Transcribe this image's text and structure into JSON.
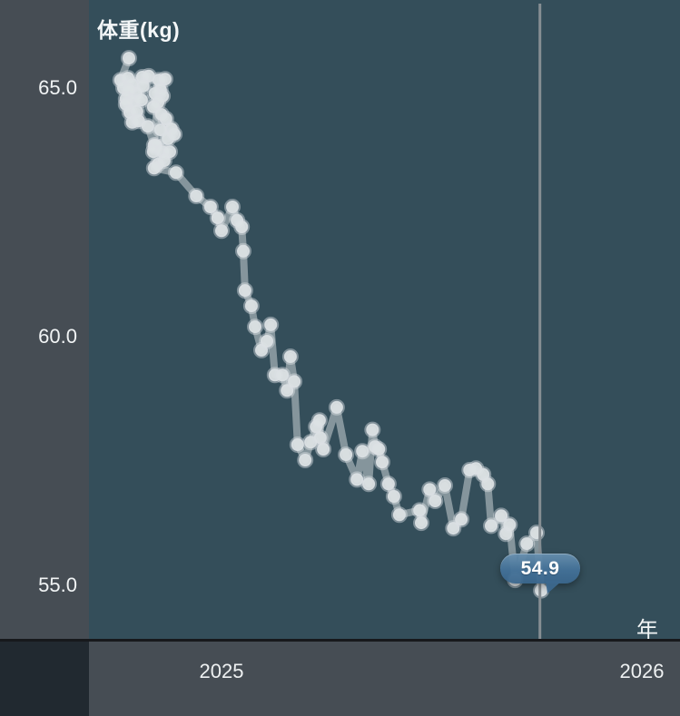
{
  "title": "体重(kg)",
  "axis": {
    "y_tick_labels": [
      "65.0",
      "60.0",
      "55.0"
    ],
    "x_tick_labels": [
      "2025",
      "2026"
    ],
    "x_unit_label": "年"
  },
  "callout": {
    "value": "54.9"
  },
  "colors": {
    "chart_background": "#344e5a",
    "panel": "#464d54",
    "panel_dark": "#212930",
    "axis_line": "#17191c",
    "series_line": "#c9d0d4",
    "series_dot": "#dce1e4",
    "cursor_line": "#868e93",
    "callout_fill": "#4a79a3",
    "text": "#f2f5f6"
  },
  "chart_data": {
    "type": "line",
    "title": "体重(kg)",
    "xlabel": "年",
    "ylabel": "体重(kg)",
    "x_tick_values": [
      2025,
      2026
    ],
    "y_tick_values": [
      65.0,
      60.0,
      55.0
    ],
    "xlim": [
      2024.685,
      2026.09
    ],
    "ylim": [
      53.89,
      66.77
    ],
    "grid": false,
    "legend": "none",
    "cursor_x": 2025.757,
    "selected_point_label": "54.9",
    "series": [
      {
        "name": "体重(kg)",
        "points": [
          [
            2024.78,
            65.6
          ],
          [
            2024.76,
            65.16
          ],
          [
            2024.778,
            65.2
          ],
          [
            2024.767,
            65.0
          ],
          [
            2024.788,
            65.07
          ],
          [
            2024.812,
            65.22
          ],
          [
            2024.827,
            65.24
          ],
          [
            2024.814,
            65.04
          ],
          [
            2024.797,
            64.89
          ],
          [
            2024.78,
            64.95
          ],
          [
            2024.773,
            64.78
          ],
          [
            2024.79,
            64.73
          ],
          [
            2024.81,
            64.76
          ],
          [
            2024.773,
            64.67
          ],
          [
            2024.782,
            64.51
          ],
          [
            2024.799,
            64.53
          ],
          [
            2024.788,
            64.31
          ],
          [
            2024.803,
            64.34
          ],
          [
            2024.825,
            64.23
          ],
          [
            2024.84,
            63.85
          ],
          [
            2024.851,
            65.16
          ],
          [
            2024.866,
            65.18
          ],
          [
            2024.855,
            64.96
          ],
          [
            2024.842,
            64.89
          ],
          [
            2024.86,
            64.84
          ],
          [
            2024.849,
            64.71
          ],
          [
            2024.838,
            64.62
          ],
          [
            2024.857,
            64.47
          ],
          [
            2024.868,
            64.38
          ],
          [
            2024.881,
            64.18
          ],
          [
            2024.855,
            64.16
          ],
          [
            2024.873,
            63.98
          ],
          [
            2024.888,
            64.07
          ],
          [
            2024.844,
            63.85
          ],
          [
            2024.838,
            63.72
          ],
          [
            2024.86,
            63.72
          ],
          [
            2024.877,
            63.72
          ],
          [
            2024.864,
            63.54
          ],
          [
            2024.849,
            63.47
          ],
          [
            2024.84,
            63.39
          ],
          [
            2024.892,
            63.3
          ],
          [
            2024.94,
            62.83
          ],
          [
            2024.974,
            62.61
          ],
          [
            2024.991,
            62.39
          ],
          [
            2025.0,
            62.13
          ],
          [
            2025.026,
            62.61
          ],
          [
            2025.037,
            62.34
          ],
          [
            2025.048,
            62.21
          ],
          [
            2025.052,
            61.72
          ],
          [
            2025.056,
            60.93
          ],
          [
            2025.071,
            60.62
          ],
          [
            2025.08,
            60.2
          ],
          [
            2025.095,
            59.73
          ],
          [
            2025.108,
            59.91
          ],
          [
            2025.117,
            60.24
          ],
          [
            2025.127,
            59.23
          ],
          [
            2025.145,
            59.23
          ],
          [
            2025.156,
            58.92
          ],
          [
            2025.164,
            59.6
          ],
          [
            2025.173,
            59.1
          ],
          [
            2025.181,
            57.83
          ],
          [
            2025.199,
            57.52
          ],
          [
            2025.212,
            57.88
          ],
          [
            2025.225,
            58.19
          ],
          [
            2025.233,
            58.32
          ],
          [
            2025.235,
            57.97
          ],
          [
            2025.242,
            57.74
          ],
          [
            2025.274,
            58.58
          ],
          [
            2025.296,
            57.63
          ],
          [
            2025.322,
            57.13
          ],
          [
            2025.335,
            57.7
          ],
          [
            2025.35,
            57.04
          ],
          [
            2025.359,
            58.13
          ],
          [
            2025.365,
            57.79
          ],
          [
            2025.374,
            57.74
          ],
          [
            2025.382,
            57.48
          ],
          [
            2025.397,
            57.04
          ],
          [
            2025.41,
            56.79
          ],
          [
            2025.423,
            56.42
          ],
          [
            2025.471,
            56.51
          ],
          [
            2025.475,
            56.26
          ],
          [
            2025.495,
            56.93
          ],
          [
            2025.508,
            56.7
          ],
          [
            2025.531,
            57.01
          ],
          [
            2025.551,
            56.15
          ],
          [
            2025.57,
            56.33
          ],
          [
            2025.59,
            57.32
          ],
          [
            2025.605,
            57.35
          ],
          [
            2025.622,
            57.23
          ],
          [
            2025.633,
            57.04
          ],
          [
            2025.641,
            56.2
          ],
          [
            2025.665,
            56.4
          ],
          [
            2025.676,
            56.04
          ],
          [
            2025.685,
            56.22
          ],
          [
            2025.698,
            55.11
          ],
          [
            2025.726,
            55.84
          ],
          [
            2025.749,
            56.06
          ],
          [
            2025.76,
            54.9
          ]
        ]
      }
    ]
  }
}
